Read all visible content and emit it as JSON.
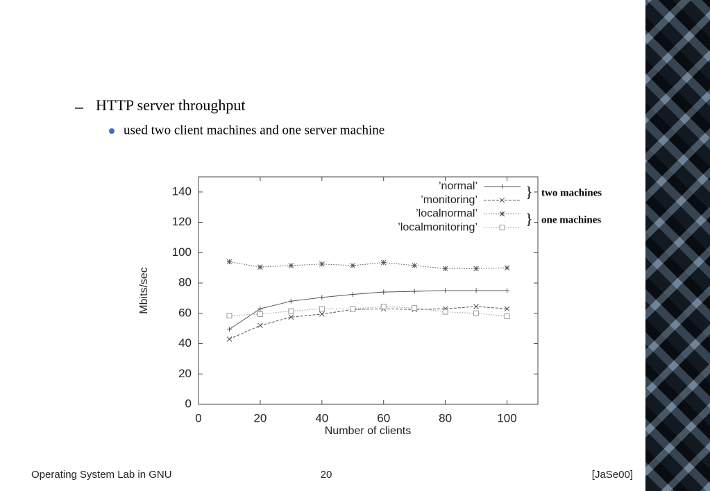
{
  "slide": {
    "bullet": "HTTP server throughput",
    "sub_bullet": "used two client machines and one server machine",
    "footer": {
      "left": "Operating System Lab in GNU",
      "center": "20",
      "right": "[JaSe00]"
    }
  },
  "chart_data": {
    "type": "line",
    "x_label": "Number of clients",
    "y_label": "Mbits/sec",
    "x": [
      10,
      20,
      30,
      40,
      50,
      60,
      70,
      80,
      90,
      100
    ],
    "series": [
      {
        "name": "’normal’",
        "color": "#555555",
        "marker": "plus",
        "dash": "solid",
        "values": [
          49.5,
          63,
          68,
          70.5,
          72.5,
          74,
          74.5,
          75,
          75,
          75
        ]
      },
      {
        "name": "’monitoring’",
        "color": "#555555",
        "marker": "cross",
        "dash": "dashed",
        "values": [
          43,
          52,
          57.5,
          59.5,
          62.5,
          63,
          62.5,
          63,
          64.5,
          63
        ]
      },
      {
        "name": "’localnormal’",
        "color": "#555555",
        "marker": "star",
        "dash": "dotted",
        "values": [
          94,
          90.5,
          91.5,
          92.5,
          91.5,
          93.5,
          91.5,
          89.5,
          89.5,
          90
        ]
      },
      {
        "name": "’localmonitoring’",
        "color": "#999999",
        "marker": "square",
        "dash": "dotted",
        "values": [
          58.5,
          59.5,
          61.5,
          63,
          63,
          64.5,
          63.5,
          61,
          60,
          58
        ]
      }
    ],
    "xlim": [
      0,
      110
    ],
    "ylim": [
      0,
      150
    ],
    "xticks": [
      0,
      20,
      40,
      60,
      80,
      100
    ],
    "yticks": [
      0,
      20,
      40,
      60,
      80,
      100,
      120,
      140
    ],
    "annotations": [
      "two machines",
      "one machines"
    ]
  }
}
